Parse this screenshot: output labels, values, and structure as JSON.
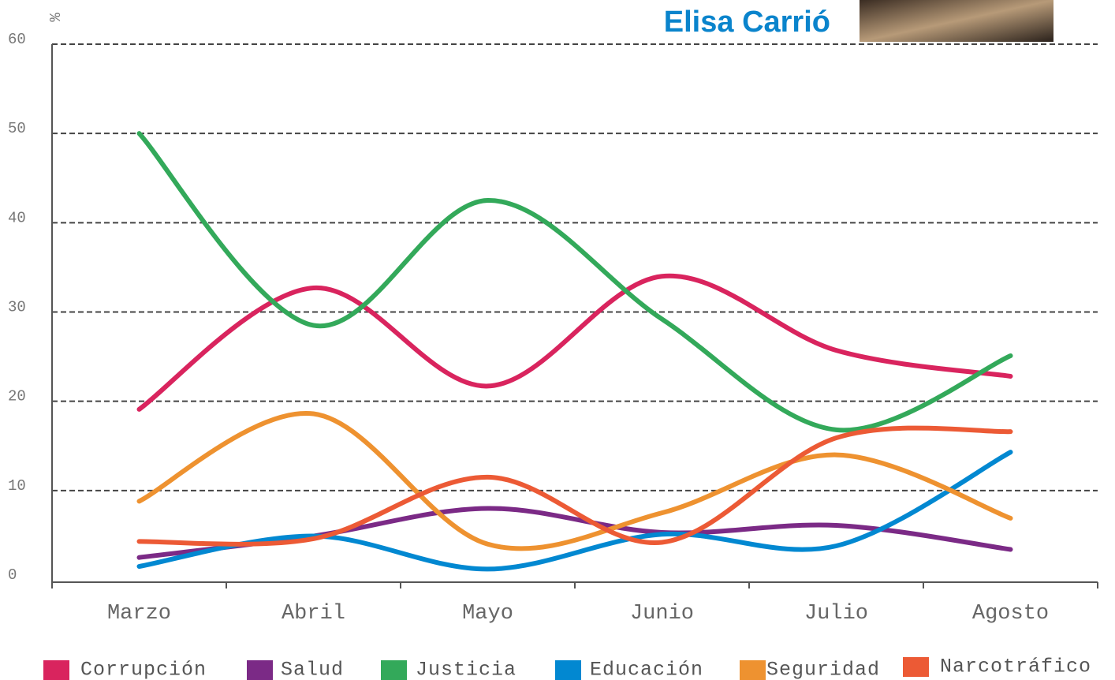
{
  "chart_data": {
    "type": "line",
    "title": "Elisa Carrió",
    "y_label": "%",
    "categories": [
      "Marzo",
      "Abril",
      "Mayo",
      "Junio",
      "Julio",
      "Agosto"
    ],
    "series": [
      {
        "name": "Corrupción",
        "color": "#d9245e",
        "values": [
          19.1,
          32.7,
          21.7,
          34,
          25.7,
          22.8
        ]
      },
      {
        "name": "Salud",
        "color": "#7b2a86",
        "values": [
          2.5,
          4.9,
          8,
          5.3,
          6.1,
          3.4
        ]
      },
      {
        "name": "Justicia",
        "color": "#33a95a",
        "values": [
          50,
          28.5,
          42.5,
          29.2,
          16.8,
          25.1
        ]
      },
      {
        "name": "Educación",
        "color": "#0288d1",
        "values": [
          1.5,
          4.9,
          1.2,
          5.1,
          3.8,
          14.3
        ]
      },
      {
        "name": "Seguridad",
        "color": "#ee9230",
        "values": [
          8.8,
          18.6,
          4,
          7.5,
          14,
          6.9
        ]
      },
      {
        "name": "Narcotráfico",
        "color": "#ec5a35",
        "values": [
          4.3,
          4.6,
          11.5,
          4.2,
          15.9,
          16.6
        ]
      }
    ],
    "ylim": [
      0,
      60
    ],
    "yticks": [
      0,
      10,
      20,
      30,
      40,
      50,
      60
    ],
    "grid": true
  }
}
